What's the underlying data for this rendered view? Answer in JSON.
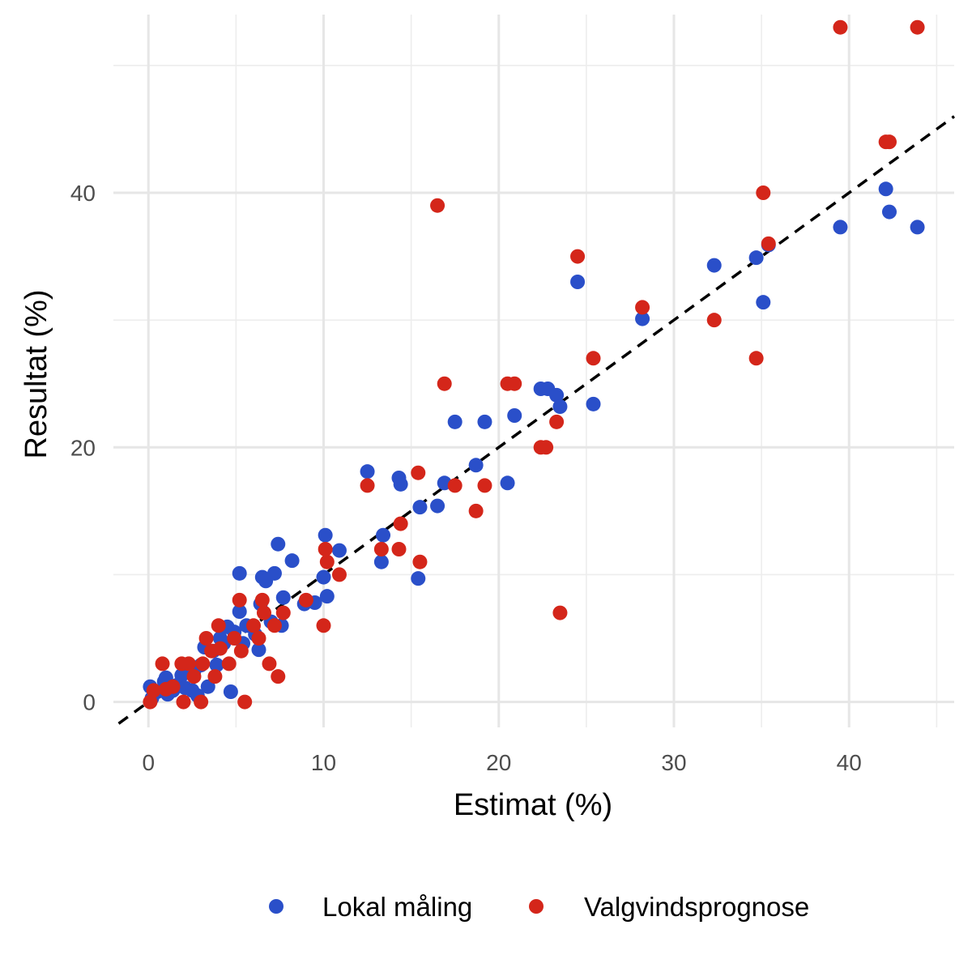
{
  "chart_data": {
    "type": "scatter",
    "xlabel": "Estimat (%)",
    "ylabel": "Resultat (%)",
    "xlim": [
      -2,
      46
    ],
    "ylim": [
      -2,
      54
    ],
    "x_ticks": [
      0,
      10,
      20,
      30,
      40
    ],
    "x_tick_labels": [
      "0",
      "10",
      "20",
      "30",
      "40"
    ],
    "y_ticks": [
      0,
      20,
      40
    ],
    "y_tick_labels": [
      "0",
      "20",
      "40"
    ],
    "grid": true,
    "legend_position": "bottom",
    "reference_line": {
      "style": "dashed",
      "color": "#000000",
      "slope": 1,
      "intercept": 0
    },
    "series": [
      {
        "name": "Lokal måling",
        "color": "#2a4fc9",
        "points": [
          [
            0.1,
            1.2
          ],
          [
            0.2,
            0.3
          ],
          [
            0.5,
            0.8
          ],
          [
            0.9,
            1.6
          ],
          [
            1.0,
            1.9
          ],
          [
            1.1,
            0.6
          ],
          [
            1.4,
            0.9
          ],
          [
            1.6,
            1.3
          ],
          [
            1.9,
            2.1
          ],
          [
            2.1,
            1.1
          ],
          [
            2.3,
            2.5
          ],
          [
            2.5,
            0.9
          ],
          [
            2.6,
            2.4
          ],
          [
            2.8,
            0.5
          ],
          [
            3.0,
            2.9
          ],
          [
            3.2,
            4.3
          ],
          [
            3.4,
            1.2
          ],
          [
            3.7,
            4.0
          ],
          [
            3.9,
            2.9
          ],
          [
            4.1,
            5.0
          ],
          [
            4.3,
            4.6
          ],
          [
            4.5,
            5.9
          ],
          [
            4.7,
            0.8
          ],
          [
            4.9,
            5.5
          ],
          [
            5.2,
            7.1
          ],
          [
            5.2,
            10.1
          ],
          [
            5.4,
            4.6
          ],
          [
            5.6,
            6.0
          ],
          [
            6.1,
            5.3
          ],
          [
            6.3,
            4.1
          ],
          [
            6.4,
            7.7
          ],
          [
            6.5,
            9.8
          ],
          [
            6.7,
            9.5
          ],
          [
            7.0,
            6.3
          ],
          [
            7.2,
            10.1
          ],
          [
            7.4,
            12.4
          ],
          [
            7.6,
            6.0
          ],
          [
            7.7,
            8.2
          ],
          [
            8.2,
            11.1
          ],
          [
            8.9,
            7.7
          ],
          [
            9.5,
            7.8
          ],
          [
            10.0,
            9.8
          ],
          [
            10.1,
            13.1
          ],
          [
            10.2,
            8.3
          ],
          [
            10.9,
            11.9
          ],
          [
            12.5,
            18.1
          ],
          [
            13.3,
            11.0
          ],
          [
            13.4,
            13.1
          ],
          [
            14.3,
            17.6
          ],
          [
            14.4,
            17.1
          ],
          [
            15.4,
            9.7
          ],
          [
            15.5,
            15.3
          ],
          [
            16.5,
            15.4
          ],
          [
            16.9,
            17.2
          ],
          [
            17.5,
            22.0
          ],
          [
            18.7,
            18.6
          ],
          [
            19.2,
            22.0
          ],
          [
            20.5,
            17.2
          ],
          [
            20.9,
            22.5
          ],
          [
            22.4,
            24.6
          ],
          [
            22.8,
            24.6
          ],
          [
            23.3,
            24.1
          ],
          [
            23.5,
            23.2
          ],
          [
            24.5,
            33.0
          ],
          [
            25.4,
            23.4
          ],
          [
            28.2,
            30.1
          ],
          [
            32.3,
            34.3
          ],
          [
            34.7,
            34.9
          ],
          [
            35.1,
            31.4
          ],
          [
            35.4,
            35.9
          ],
          [
            39.5,
            37.3
          ],
          [
            42.1,
            40.3
          ],
          [
            42.3,
            38.5
          ],
          [
            43.9,
            37.3
          ]
        ]
      },
      {
        "name": "Valgvindsprognose",
        "color": "#d4261a",
        "points": [
          [
            0.1,
            0.0
          ],
          [
            0.3,
            0.9
          ],
          [
            0.8,
            3.0
          ],
          [
            1.0,
            1.0
          ],
          [
            1.4,
            1.2
          ],
          [
            1.9,
            3.0
          ],
          [
            2.0,
            0.0
          ],
          [
            2.3,
            3.0
          ],
          [
            2.6,
            2.0
          ],
          [
            3.0,
            0.0
          ],
          [
            3.1,
            3.0
          ],
          [
            3.3,
            5.0
          ],
          [
            3.6,
            4.0
          ],
          [
            3.8,
            2.0
          ],
          [
            4.0,
            6.0
          ],
          [
            4.1,
            4.2
          ],
          [
            4.6,
            3.0
          ],
          [
            4.9,
            5.0
          ],
          [
            5.2,
            8.0
          ],
          [
            5.3,
            4.0
          ],
          [
            5.5,
            0.0
          ],
          [
            6.0,
            6.0
          ],
          [
            6.3,
            5.0
          ],
          [
            6.5,
            8.0
          ],
          [
            6.6,
            7.0
          ],
          [
            6.9,
            3.0
          ],
          [
            7.2,
            6.0
          ],
          [
            7.4,
            2.0
          ],
          [
            7.7,
            7.0
          ],
          [
            9.0,
            8.0
          ],
          [
            10.0,
            6.0
          ],
          [
            10.1,
            12.0
          ],
          [
            10.2,
            11.0
          ],
          [
            10.9,
            10.0
          ],
          [
            12.5,
            17.0
          ],
          [
            13.3,
            12.0
          ],
          [
            14.3,
            12.0
          ],
          [
            14.4,
            14.0
          ],
          [
            15.4,
            18.0
          ],
          [
            15.5,
            11.0
          ],
          [
            16.5,
            39.0
          ],
          [
            16.9,
            25.0
          ],
          [
            17.5,
            17.0
          ],
          [
            18.7,
            15.0
          ],
          [
            19.2,
            17.0
          ],
          [
            20.5,
            25.0
          ],
          [
            20.9,
            25.0
          ],
          [
            22.4,
            20.0
          ],
          [
            22.7,
            20.0
          ],
          [
            23.3,
            22.0
          ],
          [
            23.5,
            7.0
          ],
          [
            24.5,
            35.0
          ],
          [
            25.4,
            27.0
          ],
          [
            28.2,
            31.0
          ],
          [
            32.3,
            30.0
          ],
          [
            34.7,
            27.0
          ],
          [
            35.1,
            40.0
          ],
          [
            35.4,
            36.0
          ],
          [
            39.5,
            53.0
          ],
          [
            42.1,
            44.0
          ],
          [
            42.3,
            44.0
          ],
          [
            43.9,
            53.0
          ]
        ]
      }
    ]
  }
}
